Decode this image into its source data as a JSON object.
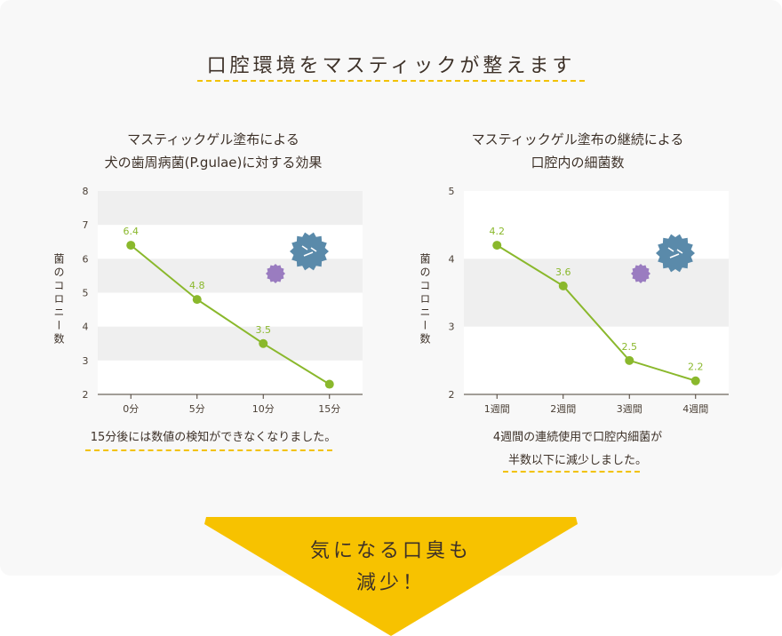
{
  "header": {
    "title": "口腔環境をマスティックが整えます"
  },
  "charts_meta": [
    {
      "title_line1": "マスティックゲル塗布による",
      "title_line2": "犬の歯周病菌(P.gulae)に対する効果",
      "note_line1": "15分後には数値の検知ができなくなりました。",
      "note_line2": ""
    },
    {
      "title_line1": "マスティックゲル塗布の継続による",
      "title_line2": "口腔内の細菌数",
      "note_line1": "4週間の連続使用で口腔内細菌が",
      "note_line2": "半数以下に減少しました。"
    }
  ],
  "callout": {
    "line1": "気になる口臭も",
    "line2": "減少！"
  },
  "colors": {
    "accent_line": "#8ab82c",
    "dashed": "#f2c200",
    "arrow": "#f7c200",
    "germ_blue": "#5a8aaa",
    "germ_purple": "#9a7cc0",
    "band": "#efefef"
  },
  "chart_data": [
    {
      "type": "line",
      "categories": [
        "0分",
        "5分",
        "10分",
        "15分"
      ],
      "values": [
        6.4,
        4.8,
        3.5,
        2.3
      ],
      "value_labels": [
        "6.4",
        "4.8",
        "3.5",
        ""
      ],
      "ylabel": "菌のコロニー数",
      "ylim": [
        2,
        8
      ],
      "yticks": [
        "2",
        "3",
        "4",
        "5",
        "6",
        "7",
        "8"
      ],
      "grid": "alternating horizontal bands"
    },
    {
      "type": "line",
      "categories": [
        "1週間",
        "2週間",
        "3週間",
        "4週間"
      ],
      "values": [
        4.2,
        3.6,
        2.5,
        2.2
      ],
      "value_labels": [
        "4.2",
        "3.6",
        "2.5",
        "2.2"
      ],
      "ylabel": "菌のコロニー数",
      "ylim": [
        2,
        5
      ],
      "yticks": [
        "2",
        "3",
        "4",
        "5"
      ],
      "grid": "alternating horizontal bands"
    }
  ]
}
